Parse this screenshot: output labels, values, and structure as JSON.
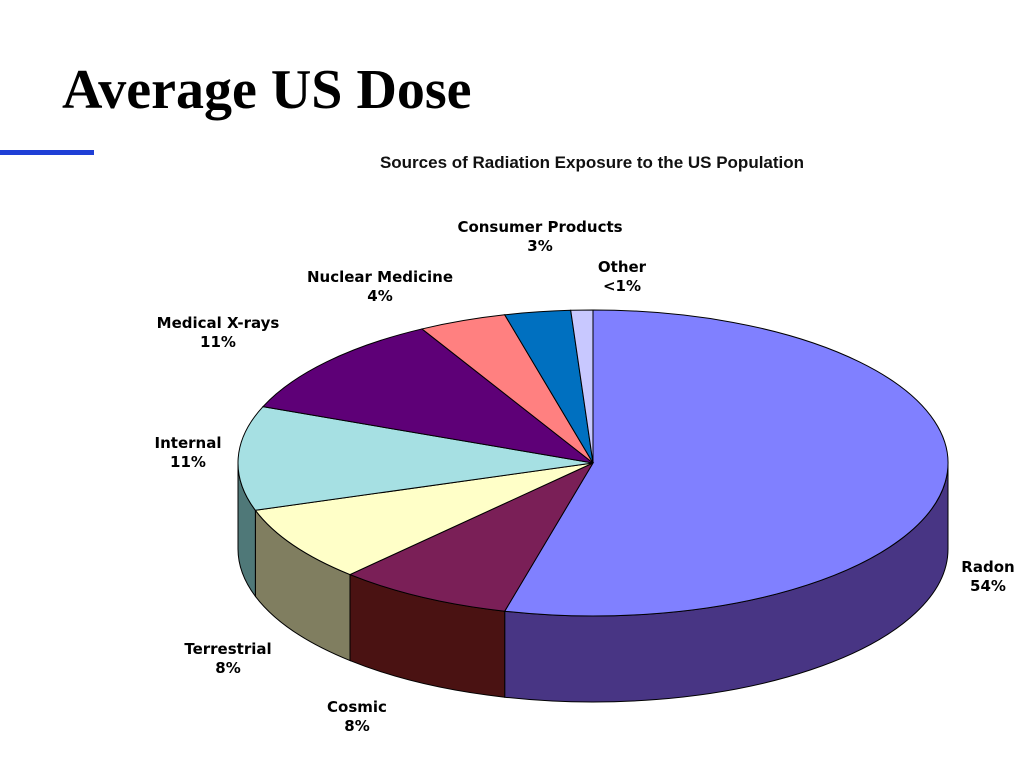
{
  "slide": {
    "title": "Average US Dose",
    "accent_color": "#1f3fd6"
  },
  "chart_data": {
    "type": "pie",
    "title": "Sources of Radiation Exposure to the US Population",
    "style": "3d",
    "slices": [
      {
        "name": "Radon",
        "value": 54,
        "value_label": "54%",
        "color": "#8080ff",
        "side_color": "#483584"
      },
      {
        "name": "Cosmic",
        "value": 8,
        "value_label": "8%",
        "color": "#7a1f57",
        "side_color": "#4a1212"
      },
      {
        "name": "Terrestrial",
        "value": 8,
        "value_label": "8%",
        "color": "#ffffc8",
        "side_color": "#807e60"
      },
      {
        "name": "Internal",
        "value": 11,
        "value_label": "11%",
        "color": "#a6e0e3",
        "side_color": "#4f7878"
      },
      {
        "name": "Medical  X-rays",
        "value": 11,
        "value_label": "11%",
        "color": "#5e0077",
        "side_color": "#3a004a"
      },
      {
        "name": "Nuclear Medicine",
        "value": 4,
        "value_label": "4%",
        "color": "#ff8080",
        "side_color": "#a04040"
      },
      {
        "name": "Consumer Products",
        "value": 3,
        "value_label": "3%",
        "color": "#0070c0",
        "side_color": "#004070"
      },
      {
        "name": "Other",
        "value": 1,
        "value_label": "<1%",
        "color": "#c8c8ff",
        "side_color": "#8080b0"
      }
    ]
  }
}
